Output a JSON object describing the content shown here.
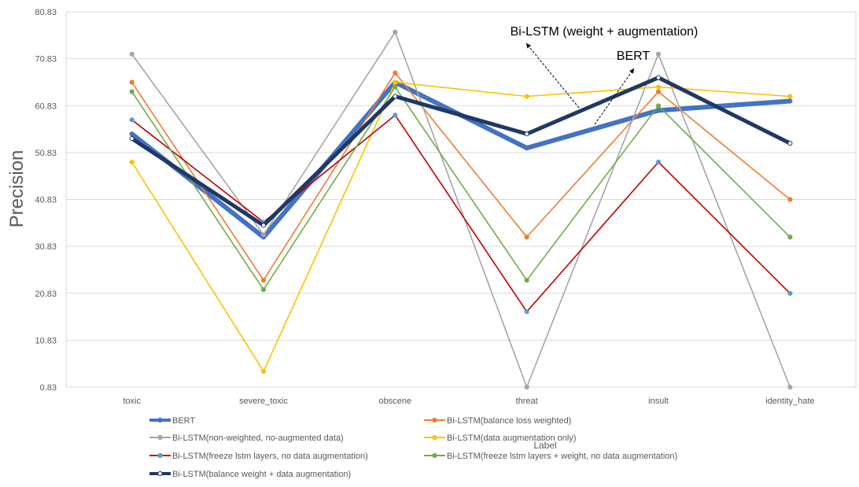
{
  "chart_data": {
    "type": "line",
    "title": "",
    "xlabel": "Label",
    "ylabel": "Precision",
    "categories": [
      "toxic",
      "severe_toxic",
      "obscene",
      "threat",
      "insult",
      "identity_hate"
    ],
    "ylim": [
      0.83,
      80.83
    ],
    "yticks": [
      "0.83",
      "10.83",
      "20.83",
      "30.83",
      "40.83",
      "50.83",
      "60.83",
      "70.83",
      "80.83"
    ],
    "grid": true,
    "legend_position": "bottom",
    "series": [
      {
        "name": "BERT",
        "color": "#4472C4",
        "values": [
          54.8,
          32.8,
          65.8,
          51.8,
          59.8,
          61.8
        ]
      },
      {
        "name": "Bi-LSTM(balance loss weighted)",
        "color": "#ED7D31",
        "values": [
          65.8,
          23.6,
          67.8,
          32.8,
          63.8,
          40.8
        ]
      },
      {
        "name": "Bi-LSTM(non-weighted, no-augmented data)",
        "color": "#A5A5A5",
        "values": [
          71.8,
          33.3,
          76.5,
          0.83,
          71.8,
          0.83
        ]
      },
      {
        "name": "Bi-LSTM(data augmentation only)",
        "color": "#FFC000",
        "values": [
          48.8,
          4.2,
          65.8,
          62.8,
          64.8,
          62.8
        ]
      },
      {
        "name": "Bi-LSTM(freeze lstm layers, no data augmentation)",
        "color": "#C00000",
        "marker_color": "#5B9BD5",
        "values": [
          57.8,
          36.0,
          58.8,
          16.9,
          48.8,
          20.8
        ]
      },
      {
        "name": "Bi-LSTM(freeze lstm layers + weight, no data augmentation)",
        "color": "#70AD47",
        "values": [
          63.8,
          21.6,
          64.8,
          23.6,
          60.8,
          32.8
        ]
      },
      {
        "name": "Bi-LSTM(balance weight + data augmentation)",
        "color": "#203864",
        "marker_color": "#ffffff",
        "values": [
          53.8,
          35.3,
          62.8,
          54.8,
          66.8,
          52.8
        ]
      }
    ],
    "annotations": [
      {
        "text": "Bi-LSTM (weight + augmentation)"
      },
      {
        "text": "BERT"
      }
    ]
  }
}
